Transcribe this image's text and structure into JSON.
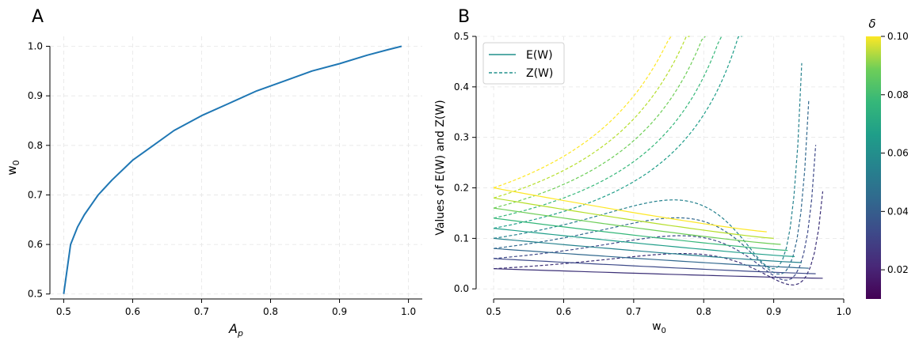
{
  "chart_data": [
    {
      "type": "line",
      "panel_label": "A",
      "xlabel": "A_p",
      "ylabel": "w0",
      "xlim": [
        0.48,
        1.02
      ],
      "ylim": [
        0.49,
        1.02
      ],
      "x_ticks": [
        "0.5",
        "0.6",
        "0.7",
        "0.8",
        "0.9",
        "1.0"
      ],
      "y_ticks": [
        "0.5",
        "0.6",
        "0.7",
        "0.8",
        "0.9",
        "1.0"
      ],
      "grid": true,
      "color": "#1f77b4",
      "series": [
        {
          "x": [
            0.5,
            0.51,
            0.52,
            0.53,
            0.55,
            0.57,
            0.6,
            0.63,
            0.66,
            0.7,
            0.74,
            0.78,
            0.82,
            0.86,
            0.9,
            0.94,
            0.97,
            0.99
          ],
          "y": [
            0.5,
            0.6,
            0.635,
            0.66,
            0.7,
            0.73,
            0.77,
            0.8,
            0.83,
            0.86,
            0.885,
            0.91,
            0.93,
            0.95,
            0.965,
            0.982,
            0.993,
            1.0
          ]
        }
      ]
    },
    {
      "type": "line",
      "panel_label": "B",
      "xlabel": "w0",
      "ylabel": "Values of E(W) and Z(W)",
      "xlim": [
        0.475,
        1.0
      ],
      "ylim": [
        -0.02,
        0.5
      ],
      "x_ticks": [
        "0.5",
        "0.6",
        "0.7",
        "0.8",
        "0.9",
        "1.0"
      ],
      "y_ticks": [
        "0.0",
        "0.1",
        "0.2",
        "0.3",
        "0.4",
        "0.5"
      ],
      "grid": true,
      "legend": {
        "position": "top-left",
        "entries": [
          {
            "label": "E(W)",
            "style": "solid",
            "color": "#21918c"
          },
          {
            "label": "Z(W)",
            "style": "dashed",
            "color": "#21918c"
          }
        ]
      },
      "colorbar": {
        "title": "δ",
        "range": [
          0.01,
          0.1
        ],
        "ticks": [
          "0.02",
          "0.04",
          "0.06",
          "0.08",
          "0.10"
        ],
        "tick_values": [
          0.02,
          0.04,
          0.06,
          0.08,
          0.1
        ],
        "colormap": "viridis"
      },
      "series": [
        {
          "delta": 0.02,
          "color": "#3b2f76",
          "w_end": 0.97,
          "E": [
            0.04,
            0.021
          ],
          "Z_start": 0.04,
          "Z_end": 0.193
        },
        {
          "delta": 0.03,
          "color": "#3e4a89",
          "w_end": 0.96,
          "E": [
            0.06,
            0.03
          ],
          "Z_start": 0.06,
          "Z_end": 0.285
        },
        {
          "delta": 0.04,
          "color": "#31688e",
          "w_end": 0.95,
          "E": [
            0.08,
            0.041
          ],
          "Z_start": 0.08,
          "Z_end": 0.372
        },
        {
          "delta": 0.05,
          "color": "#26828e",
          "w_end": 0.94,
          "E": [
            0.1,
            0.052
          ],
          "Z_start": 0.1,
          "Z_end": 0.447
        },
        {
          "delta": 0.06,
          "color": "#1f9e89",
          "w_end": 0.93,
          "E": [
            0.12,
            0.064
          ],
          "Z_start": 0.12,
          "Z_end": 0.5
        },
        {
          "delta": 0.07,
          "color": "#35b779",
          "w_end": 0.92,
          "E": [
            0.14,
            0.076
          ],
          "Z_start": 0.14,
          "Z_end": 0.5
        },
        {
          "delta": 0.08,
          "color": "#6ece58",
          "w_end": 0.91,
          "E": [
            0.16,
            0.088
          ],
          "Z_start": 0.16,
          "Z_end": 0.5
        },
        {
          "delta": 0.09,
          "color": "#b5de2b",
          "w_end": 0.9,
          "E": [
            0.18,
            0.1
          ],
          "Z_start": 0.18,
          "Z_end": 0.5
        },
        {
          "delta": 0.1,
          "color": "#fde725",
          "w_end": 0.89,
          "E": [
            0.2,
            0.113
          ],
          "Z_start": 0.2,
          "Z_end": 0.5
        }
      ]
    }
  ]
}
